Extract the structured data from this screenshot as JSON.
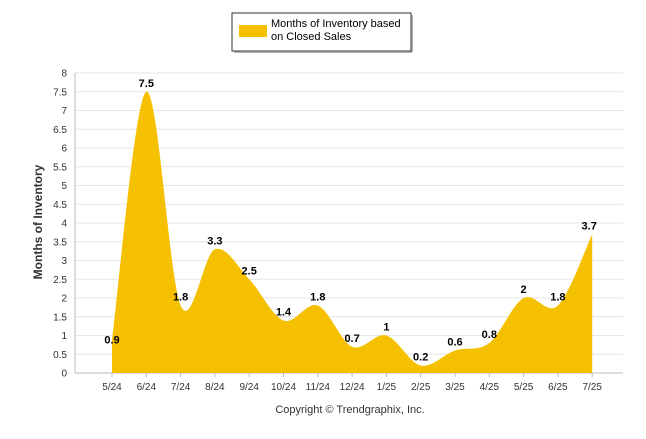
{
  "chart_data": {
    "type": "area",
    "title": "",
    "xlabel": "",
    "ylabel": "Months of Inventory",
    "ylim": [
      0,
      8
    ],
    "yticks": [
      0,
      0.5,
      1,
      1.5,
      2,
      2.5,
      3,
      3.5,
      4,
      4.5,
      5,
      5.5,
      6,
      6.5,
      7,
      7.5,
      8
    ],
    "grid": true,
    "legend": "top-center",
    "categories": [
      "5/24",
      "6/24",
      "7/24",
      "8/24",
      "9/24",
      "10/24",
      "11/24",
      "12/24",
      "1/25",
      "2/25",
      "3/25",
      "4/25",
      "5/25",
      "6/25",
      "7/25"
    ],
    "series": [
      {
        "name": "Months of Inventory based on Closed Sales",
        "legend_lines": [
          "Months of Inventory based",
          "on Closed Sales"
        ],
        "color": "#f5c000",
        "values": [
          0.9,
          7.5,
          1.8,
          3.3,
          2.5,
          1.4,
          1.8,
          0.7,
          1,
          0.2,
          0.6,
          0.8,
          2,
          1.8,
          3.7
        ],
        "labels": [
          "0.9",
          "7.5",
          "1.8",
          "3.3",
          "2.5",
          "1.4",
          "1.8",
          "0.7",
          "1",
          "0.2",
          "0.6",
          "0.8",
          "2",
          "1.8",
          "3.7"
        ]
      }
    ],
    "credit": "Copyright © Trendgraphix, Inc."
  }
}
